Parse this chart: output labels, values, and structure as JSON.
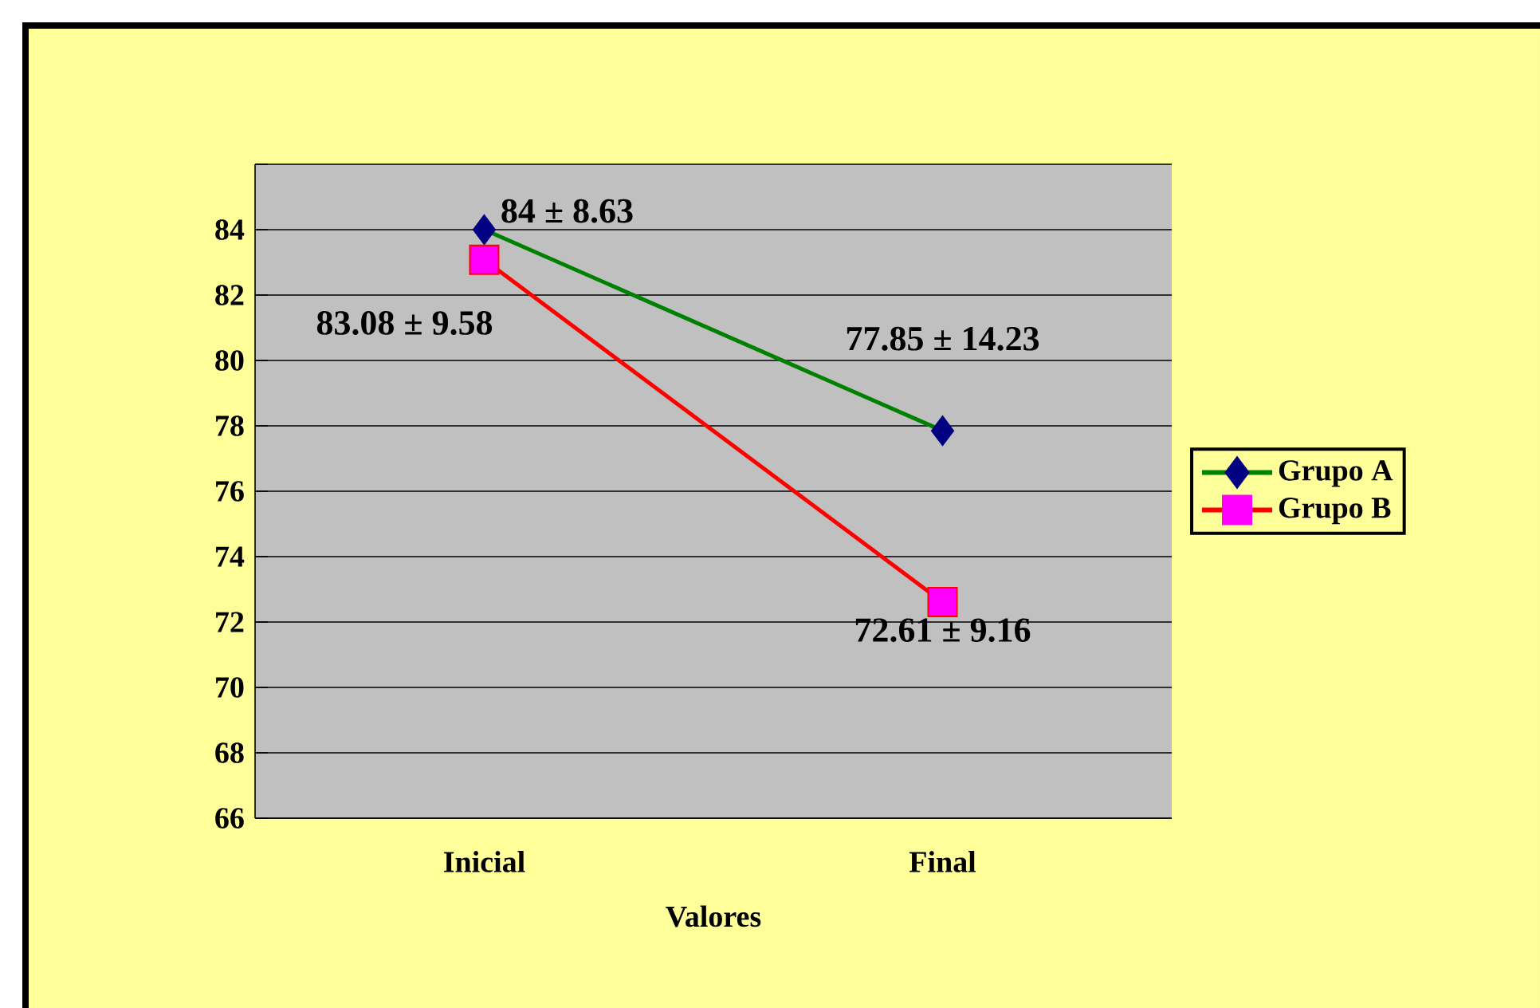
{
  "chart_data": {
    "type": "line",
    "xlabel": "Valores",
    "categories": [
      "Inicial",
      "Final"
    ],
    "series": [
      {
        "name": "Grupo A",
        "color": "#008000",
        "colors": [
          "#000080",
          "#000080"
        ],
        "marker": "diamond",
        "values": [
          84,
          77.85
        ],
        "value_labels": [
          "84 ± 8.63",
          "77.85 ± 14.23"
        ]
      },
      {
        "name": "Grupo B",
        "color": "#ff0000",
        "colors": [
          "#ff00ff",
          "#ff00ff"
        ],
        "marker": "square",
        "values": [
          83.08,
          72.61
        ],
        "value_labels": [
          "83.08 ± 9.58",
          "72.61 ± 9.16"
        ]
      }
    ],
    "ylim": [
      66,
      86
    ],
    "yticks": [
      66,
      68,
      70,
      72,
      74,
      76,
      78,
      80,
      82,
      84,
      {
        "value": 86,
        "label": null
      }
    ],
    "grid": "y",
    "legend": "right"
  }
}
